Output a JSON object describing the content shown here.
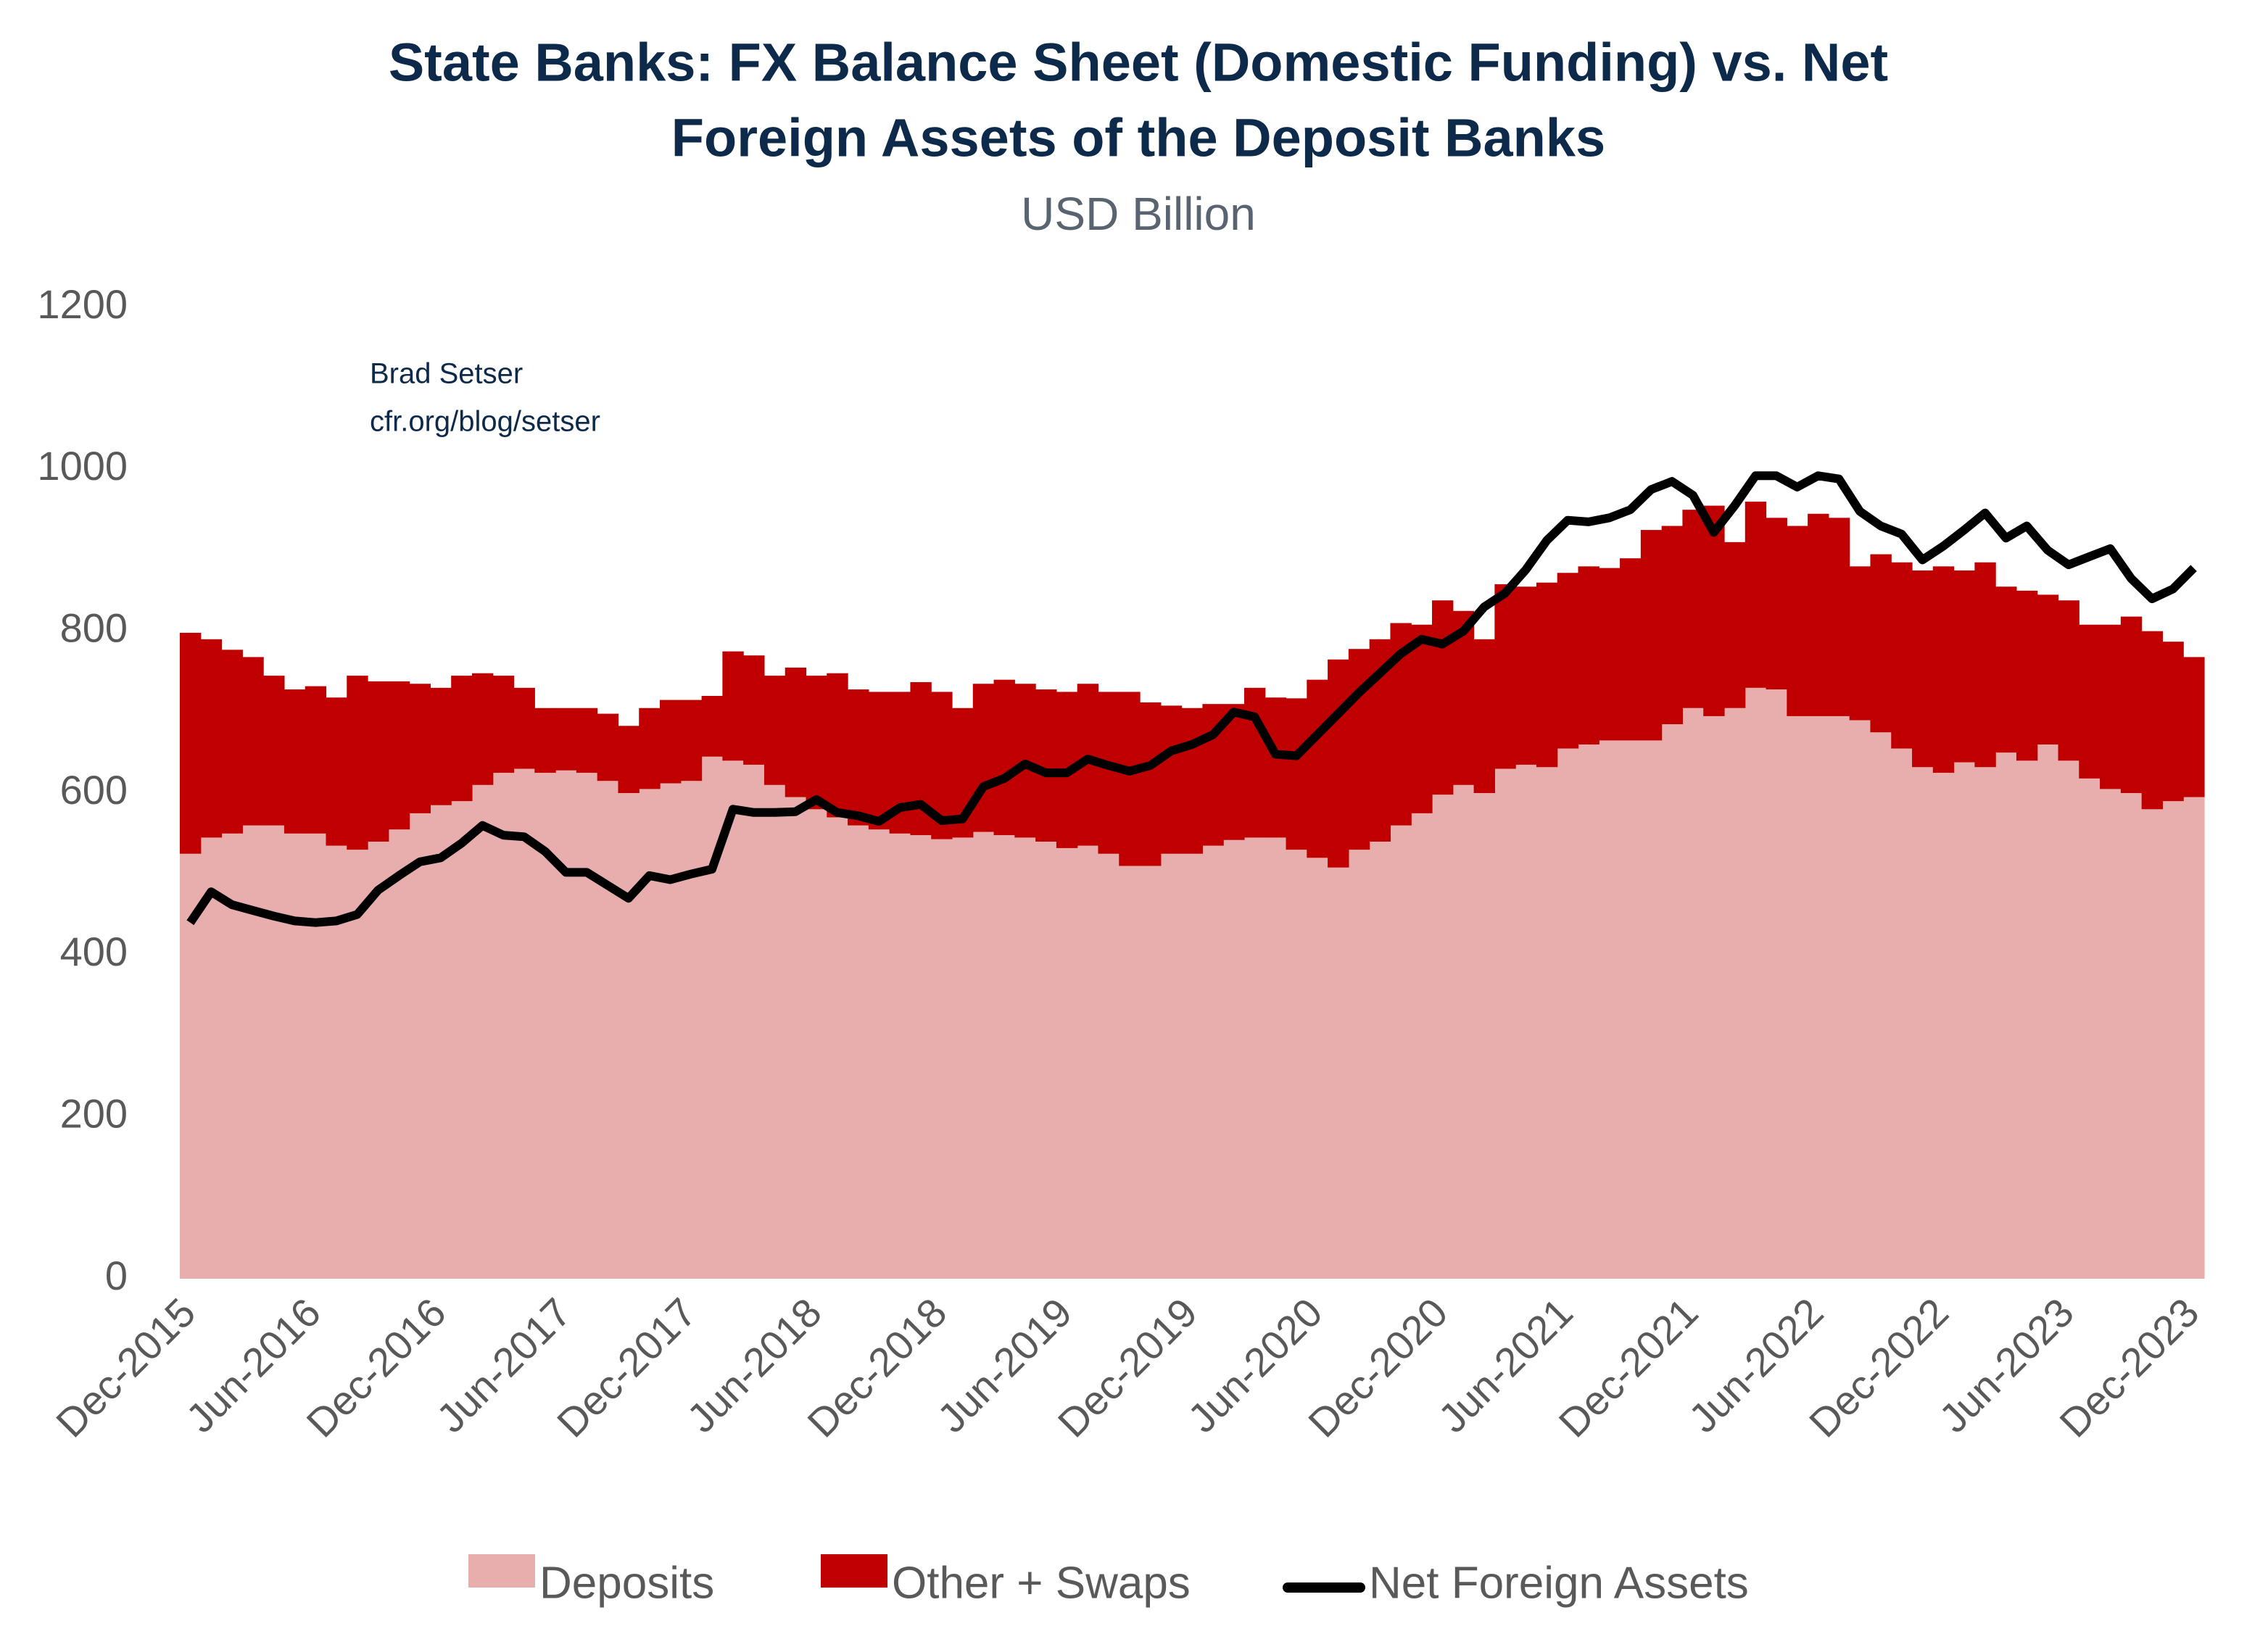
{
  "chart_data": {
    "type": "bar",
    "stacked": true,
    "title": [
      "State Banks: FX Balance Sheet (Domestic Funding) vs. Net",
      "Foreign Assets of the Deposit Banks"
    ],
    "subtitle": "USD Billion",
    "annotations": [
      "Brad Setser",
      "cfr.org/blog/setser"
    ],
    "categories": [
      "Dec-2015",
      null,
      null,
      null,
      null,
      null,
      "Jun-2016",
      null,
      null,
      null,
      null,
      null,
      "Dec-2016",
      null,
      null,
      null,
      null,
      null,
      "Jun-2017",
      null,
      null,
      null,
      null,
      null,
      "Dec-2017",
      null,
      null,
      null,
      null,
      null,
      "Jun-2018",
      null,
      null,
      null,
      null,
      null,
      "Dec-2018",
      null,
      null,
      null,
      null,
      null,
      "Jun-2019",
      null,
      null,
      null,
      null,
      null,
      "Dec-2019",
      null,
      null,
      null,
      null,
      null,
      "Jun-2020",
      null,
      null,
      null,
      null,
      null,
      "Dec-2020",
      null,
      null,
      null,
      null,
      null,
      "Jun-2021",
      null,
      null,
      null,
      null,
      null,
      "Dec-2021",
      null,
      null,
      null,
      null,
      null,
      "Jun-2022",
      null,
      null,
      null,
      null,
      null,
      "Dec-2022",
      null,
      null,
      null,
      null,
      null,
      "Jun-2023",
      null,
      null,
      null,
      null,
      null,
      "Dec-2023"
    ],
    "series": [
      {
        "name": "Deposits",
        "type": "bar",
        "color": "#e8adad",
        "values": [
          525,
          545,
          550,
          560,
          560,
          550,
          550,
          535,
          530,
          540,
          555,
          575,
          585,
          590,
          610,
          625,
          630,
          625,
          628,
          625,
          615,
          600,
          605,
          612,
          615,
          645,
          640,
          635,
          610,
          595,
          580,
          570,
          560,
          555,
          550,
          548,
          543,
          545,
          552,
          548,
          545,
          540,
          532,
          535,
          525,
          510,
          510,
          525,
          525,
          535,
          542,
          545,
          545,
          530,
          520,
          508,
          530,
          540,
          560,
          575,
          598,
          610,
          600,
          630,
          635,
          632,
          655,
          660,
          665,
          665,
          665,
          685,
          705,
          695,
          705,
          730,
          728,
          695,
          695,
          695,
          690,
          675,
          655,
          632,
          625,
          638,
          632,
          650,
          640,
          660,
          640,
          618,
          605,
          600,
          580,
          590,
          595
        ]
      },
      {
        "name": "Other + Swaps",
        "type": "bar",
        "color": "#c00000",
        "values": [
          273,
          245,
          227,
          208,
          185,
          178,
          182,
          183,
          215,
          198,
          183,
          160,
          145,
          155,
          138,
          120,
          100,
          80,
          77,
          80,
          83,
          83,
          100,
          103,
          100,
          75,
          135,
          135,
          135,
          160,
          165,
          178,
          168,
          170,
          175,
          189,
          182,
          160,
          183,
          192,
          190,
          188,
          193,
          200,
          200,
          215,
          202,
          183,
          180,
          175,
          168,
          185,
          173,
          187,
          220,
          257,
          248,
          250,
          250,
          233,
          240,
          215,
          190,
          228,
          220,
          228,
          217,
          220,
          213,
          225,
          260,
          245,
          245,
          260,
          205,
          230,
          212,
          235,
          250,
          245,
          190,
          220,
          230,
          243,
          255,
          237,
          253,
          205,
          210,
          185,
          198,
          190,
          203,
          218,
          220,
          197,
          173
        ]
      },
      {
        "name": "Net Foreign Assets",
        "type": "line",
        "color": "#000000",
        "values": [
          440,
          478,
          462,
          455,
          448,
          442,
          440,
          442,
          450,
          480,
          498,
          515,
          520,
          538,
          560,
          548,
          546,
          528,
          502,
          502,
          486,
          470,
          498,
          493,
          500,
          506,
          580,
          576,
          576,
          577,
          592,
          576,
          572,
          565,
          582,
          586,
          566,
          568,
          608,
          618,
          636,
          625,
          625,
          642,
          634,
          627,
          634,
          652,
          660,
          672,
          700,
          694,
          648,
          646,
          672,
          698,
          724,
          748,
          772,
          790,
          784,
          800,
          830,
          847,
          876,
          912,
          937,
          935,
          940,
          950,
          975,
          985,
          968,
          922,
          955,
          992,
          992,
          978,
          992,
          988,
          948,
          930,
          920,
          888,
          905,
          925,
          946,
          915,
          930,
          900,
          882,
          892,
          902,
          865,
          840,
          852,
          878
        ]
      }
    ],
    "ylim": [
      0,
      1200
    ],
    "yticks": [
      0,
      200,
      400,
      600,
      800,
      1000,
      1200
    ],
    "grid": false
  }
}
